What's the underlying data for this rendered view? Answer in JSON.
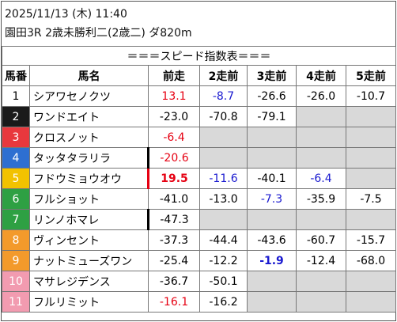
{
  "header": {
    "datetime": "2025/11/13 (木) 11:40",
    "race": "園田3R 2歳未勝利二(2歳二) ダ820m"
  },
  "table": {
    "title": "＝＝＝スピード指数表＝＝＝",
    "columns": [
      "馬番",
      "馬名",
      "前走",
      "2走前",
      "3走前",
      "4走前",
      "5走前"
    ],
    "rows": [
      {
        "number": "1",
        "badge_color": "#ffffff",
        "badge_text_color": "#000000",
        "name": "シアワセノクツ",
        "values": [
          "13.1",
          "-8.7",
          "-26.6",
          "-26.0",
          "-10.7"
        ],
        "colors": [
          "#e60012",
          "#1a1ad0",
          null,
          null,
          null
        ]
      },
      {
        "number": "2",
        "badge_color": "#1a1a1a",
        "badge_text_color": "#ffffff",
        "name": "ワンドエイト",
        "values": [
          "-23.0",
          "-70.8",
          "-79.1",
          null,
          null
        ],
        "colors": [
          null,
          null,
          null,
          null,
          null
        ]
      },
      {
        "number": "3",
        "badge_color": "#e8383d",
        "badge_text_color": "#ffffff",
        "name": "クロスノット",
        "values": [
          "-6.4",
          null,
          null,
          null,
          null
        ],
        "colors": [
          "#e60012",
          null,
          null,
          null,
          null
        ]
      },
      {
        "number": "4",
        "badge_color": "#2e6fd1",
        "badge_text_color": "#ffffff",
        "name": "タッタタラリラ",
        "values": [
          "-20.6",
          null,
          null,
          null,
          null
        ],
        "colors": [
          "#e60012",
          null,
          null,
          null,
          null
        ],
        "bar_color": "#000000"
      },
      {
        "number": "5",
        "badge_color": "#f2c200",
        "badge_text_color": "#ffffff",
        "name": "フドウミョウオウ",
        "values": [
          "19.5",
          "-11.6",
          "-40.1",
          "-6.4",
          null
        ],
        "colors": [
          "#e60012",
          "#1a1ad0",
          null,
          "#1a1ad0",
          null
        ],
        "bold": [
          0
        ],
        "bar_color": "#e60012"
      },
      {
        "number": "6",
        "badge_color": "#2ea043",
        "badge_text_color": "#ffffff",
        "name": "フルショット",
        "values": [
          "-41.0",
          "-13.0",
          "-7.3",
          "-35.9",
          "-7.5"
        ],
        "colors": [
          null,
          null,
          "#1a1ad0",
          null,
          null
        ]
      },
      {
        "number": "7",
        "badge_color": "#2ea043",
        "badge_text_color": "#ffffff",
        "name": "リンノホマレ",
        "values": [
          "-47.3",
          null,
          null,
          null,
          null
        ],
        "colors": [
          null,
          null,
          null,
          null,
          null
        ],
        "bar_color": "#000000"
      },
      {
        "number": "8",
        "badge_color": "#f39a2b",
        "badge_text_color": "#ffffff",
        "name": "ヴィンセント",
        "values": [
          "-37.3",
          "-44.4",
          "-43.6",
          "-60.7",
          "-15.7"
        ],
        "colors": [
          null,
          null,
          null,
          null,
          null
        ]
      },
      {
        "number": "9",
        "badge_color": "#f39a2b",
        "badge_text_color": "#ffffff",
        "name": "ナットミューズワン",
        "values": [
          "-25.4",
          "-12.2",
          "-1.9",
          "-12.4",
          "-68.0"
        ],
        "colors": [
          null,
          null,
          "#1a1ad0",
          null,
          null
        ],
        "bold": [
          2
        ]
      },
      {
        "number": "10",
        "badge_color": "#f29bb0",
        "badge_text_color": "#ffffff",
        "name": "マサレジデンス",
        "values": [
          "-36.7",
          "-50.1",
          null,
          null,
          null
        ],
        "colors": [
          null,
          null,
          null,
          null,
          null
        ]
      },
      {
        "number": "11",
        "badge_color": "#f29bb0",
        "badge_text_color": "#ffffff",
        "name": "フルリミット",
        "values": [
          "-16.1",
          "-16.2",
          null,
          null,
          null
        ],
        "colors": [
          "#e60012",
          null,
          null,
          null,
          null
        ]
      }
    ]
  }
}
